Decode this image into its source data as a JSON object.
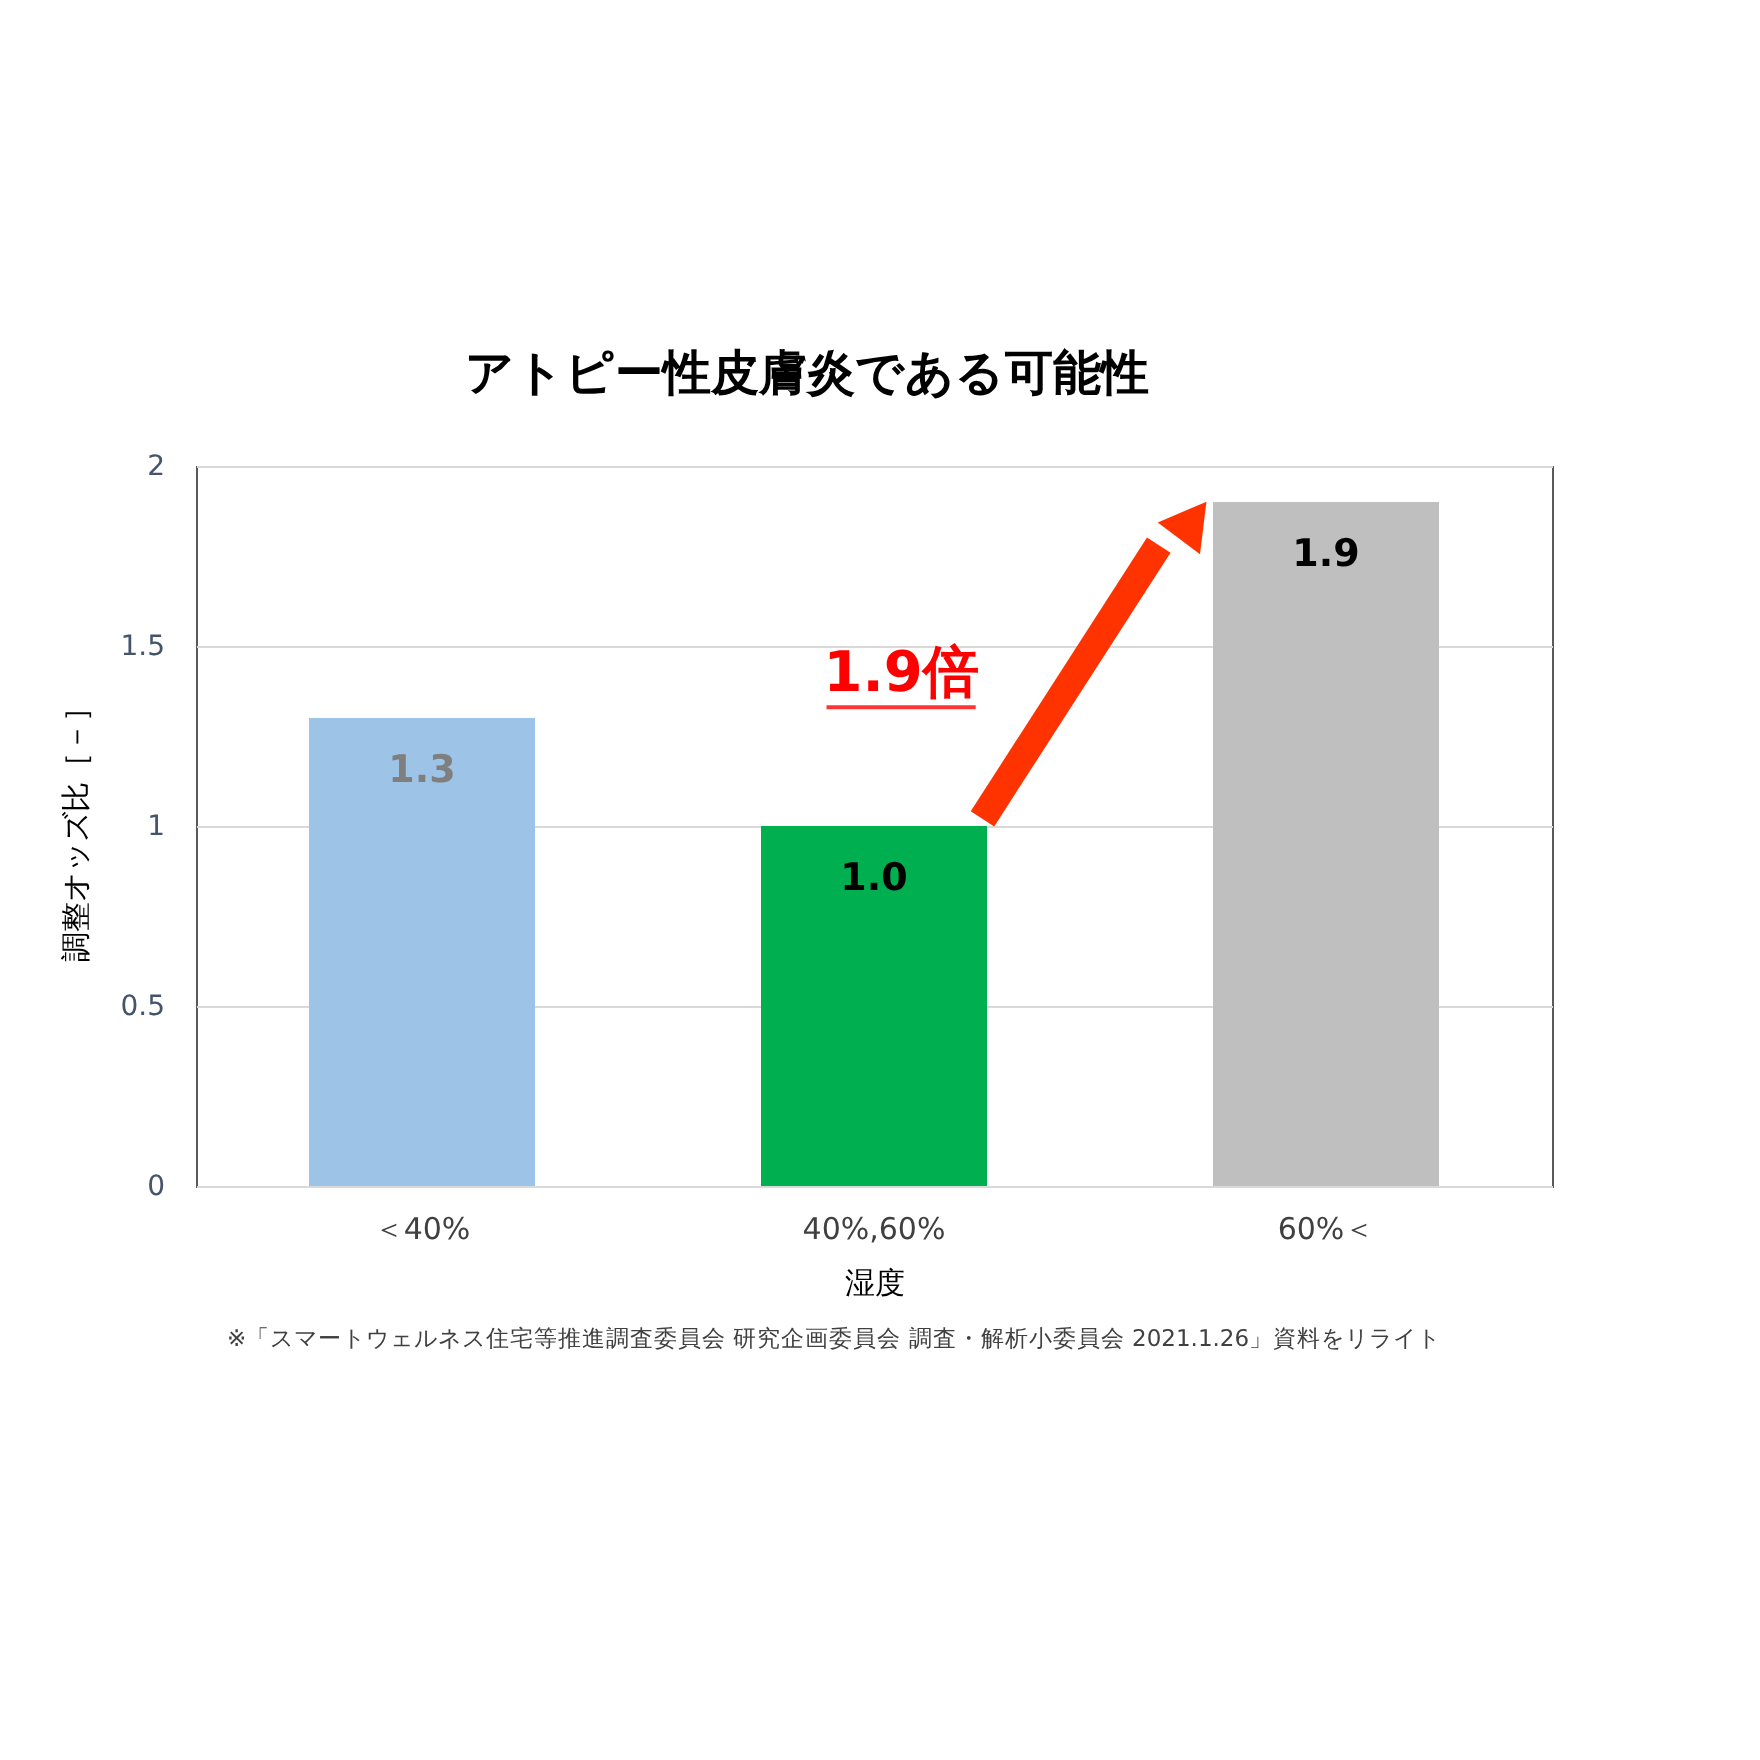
{
  "chart_data": {
    "type": "bar",
    "title": "アトピー性皮膚炎である可能性",
    "categories": [
      "＜40%",
      "40%,60%",
      "60%＜"
    ],
    "values": [
      1.3,
      1.0,
      1.9
    ],
    "colors": [
      "#9dc3e6",
      "#00b050",
      "#bfbfbf"
    ],
    "value_labels": [
      "1.3",
      "1.0",
      "1.9"
    ],
    "xlabel": "湿度",
    "ylabel": "調整オッズ比［－］",
    "ylim": [
      0,
      2
    ],
    "yticks": [
      0,
      0.5,
      1,
      1.5,
      2
    ],
    "grid": "y",
    "legend": false,
    "annotations": [
      "1.9倍",
      "※「スマートウェルネス住宅等推進調査委員会 研究企画委員会 調査・解析小委員会 2021.1.26」資料をリライト"
    ]
  }
}
